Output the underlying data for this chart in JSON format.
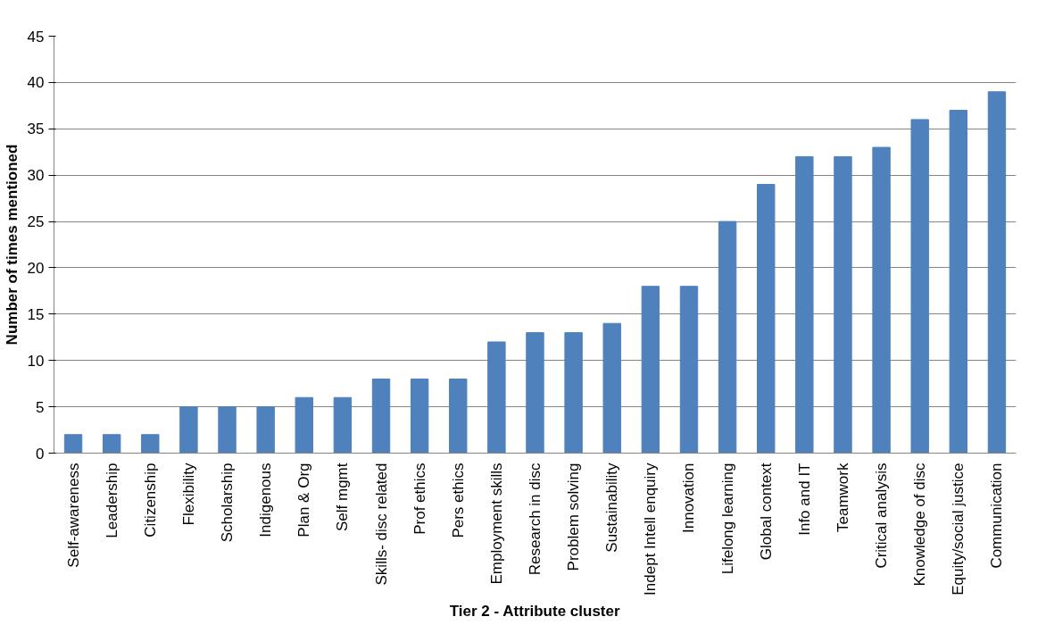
{
  "chart_data": {
    "type": "bar",
    "xlabel": "Tier 2 - Attribute cluster",
    "ylabel": "Number of times mentioned",
    "categories": [
      "Self-awareness",
      "Leadership",
      "Citizenship",
      "Flexibility",
      "Scholarship",
      "Indigenous",
      "Plan & Org",
      "Self mgmt",
      "Skills- disc related",
      "Prof ethics",
      "Pers ethics",
      "Employment skills",
      "Research in disc",
      "Problem solving",
      "Sustainability",
      "Indept Intell enquiry",
      "Innovation",
      "Lifelong learning",
      "Global context",
      "Info and IT",
      "Teamwork",
      "Critical analysis",
      "Knowledge of disc",
      "Equity/social justice",
      "Communication"
    ],
    "values": [
      2,
      2,
      2,
      5,
      5,
      5,
      6,
      6,
      8,
      8,
      8,
      12,
      13,
      13,
      14,
      18,
      18,
      25,
      29,
      32,
      32,
      33,
      36,
      37,
      39
    ],
    "color": "#4f81bd",
    "ylim": [
      0,
      45
    ],
    "yticks": [
      0,
      5,
      10,
      15,
      20,
      25,
      30,
      35,
      40,
      45
    ],
    "grid": "y"
  }
}
